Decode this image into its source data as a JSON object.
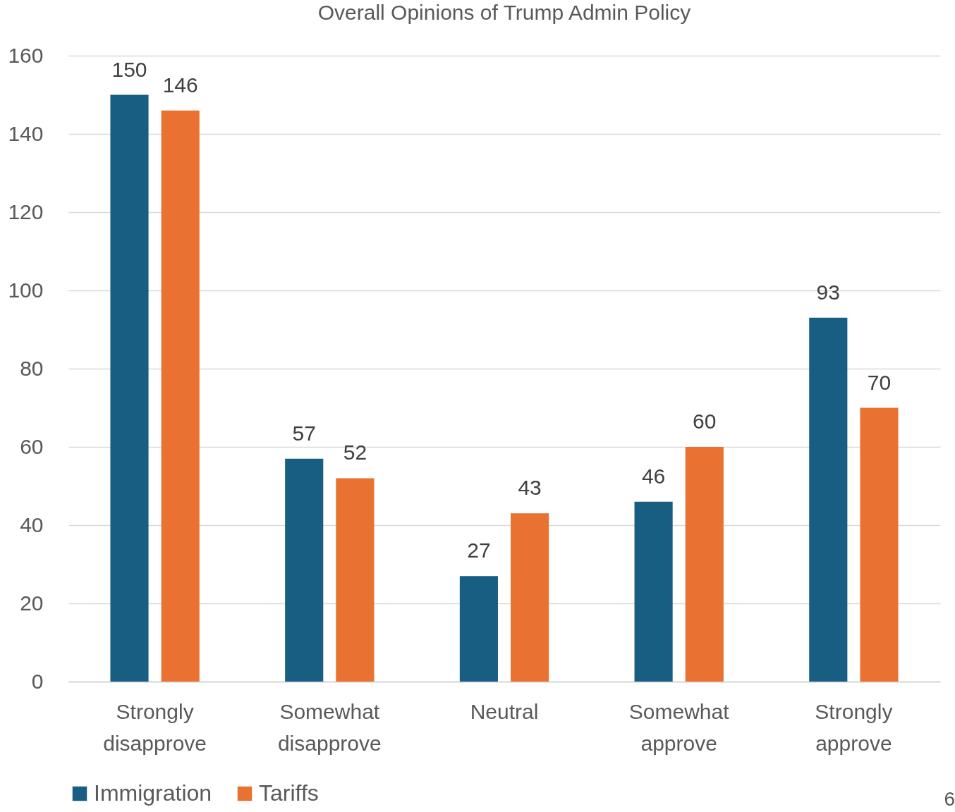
{
  "chart_data": {
    "type": "bar",
    "title": "Overall Opinions of Trump Admin Policy",
    "categories": [
      "Strongly disapprove",
      "Somewhat disapprove",
      "Neutral",
      "Somewhat approve",
      "Strongly approve"
    ],
    "series": [
      {
        "name": "Immigration",
        "color": "#175e82",
        "values": [
          150,
          57,
          27,
          46,
          93
        ]
      },
      {
        "name": "Tariffs",
        "color": "#e97132",
        "values": [
          146,
          52,
          43,
          60,
          70
        ]
      }
    ],
    "ylim": [
      0,
      160
    ],
    "yticks": [
      0,
      20,
      40,
      60,
      80,
      100,
      120,
      140,
      160
    ],
    "grid": "y",
    "legend": "bottom",
    "data_labels": true,
    "annotations": [
      "6"
    ]
  }
}
